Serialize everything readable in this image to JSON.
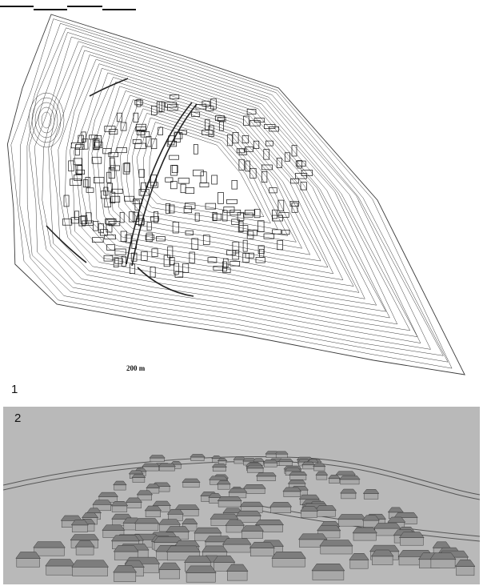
{
  "panels": [
    {
      "label": "1",
      "scale_label": "200 m"
    },
    {
      "label": "2"
    }
  ],
  "colors": {
    "contour": "#3a3a3a",
    "road": "#222222",
    "render_background": "#b9b9b9",
    "roof": "#7d7d7d",
    "wall": "#a8a8a8"
  }
}
